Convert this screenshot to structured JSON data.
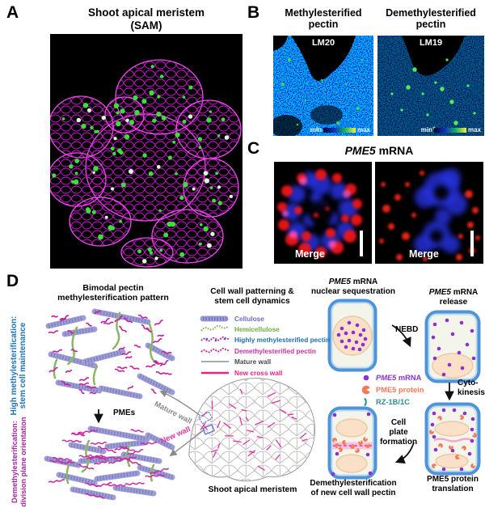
{
  "colors": {
    "magenta_accent": "#e8309f",
    "blue_label": "#1e74b8",
    "purple_label": "#a826a0",
    "mrna_purple": "#8f2fd0",
    "protein_salmon": "#f4795b",
    "rz_teal": "#2e8f8f",
    "cellulose_lavender": "#a0a0d8",
    "hemicellulose_green": "#8ab564"
  },
  "a": {
    "letter": "A",
    "title1": "Shoot apical meristem",
    "title2": "(SAM)"
  },
  "b": {
    "letter": "B",
    "col1_line1": "Methylesterified",
    "col1_line2": "pectin",
    "col2_line1": "Demethylesterified",
    "col2_line2": "pectin",
    "img1_label": "LM20",
    "img2_label": "LM19",
    "scale_min": "min",
    "scale_max": "max"
  },
  "c": {
    "letter": "C",
    "title_gene": "PME5",
    "title_rest": " mRNA",
    "merge1": "Merge",
    "merge2": "Merge"
  },
  "d": {
    "letter": "D",
    "bimodal_title1": "Bimodal pectin",
    "bimodal_title2": "methylesterification pattern",
    "high_line1": "High methylesterification:",
    "high_line2": "stem cell maintenance",
    "demeth_line1": "Demethylesterification:",
    "demeth_line2": "division plane orientation",
    "pmes": "PMEs",
    "legend_title1": "Cell wall patterning &",
    "legend_title2": "stem cell dynamics",
    "legend": [
      {
        "label": "Cellulose",
        "color": "#6b6bd2"
      },
      {
        "label": "Hemicellulose",
        "color": "#6fae3e"
      },
      {
        "label": "Highly methylesterified pectin",
        "color": "#1f6fb5"
      },
      {
        "label": "Demethylesterified pectin",
        "color": "#cc2f9f"
      },
      {
        "label": "Mature wall",
        "color": "#4a4a4a"
      },
      {
        "label": "New cross wall",
        "color": "#e8237f"
      }
    ],
    "mature_wall": "Mature wall",
    "new_wall": "New wall",
    "sam_label": "Shoot apical meristem",
    "cycle": {
      "step1_gene": "PME5",
      "step1_rest": " mRNA",
      "step1_line2": "nuclear sequestration",
      "nebd": "NEBD",
      "step2_gene": "PME5",
      "step2_rest": " mRNA",
      "step2_line2": "release",
      "cyto_line1": "Cyto-",
      "cyto_line2": "kinesis",
      "legend": [
        {
          "gene": "PME5",
          "rest": " mRNA",
          "color": "#8f2fd0"
        },
        {
          "label": "PME5 protein",
          "color": "#f4795b"
        },
        {
          "label": "RZ-1B/1C",
          "color": "#2e8f8f"
        }
      ],
      "plate_line1": "Cell",
      "plate_line2": "plate",
      "plate_line3": "formation",
      "step3_line1": "PME5 protein",
      "step3_line2": "translation",
      "step4_line1": "Demethylesterification",
      "step4_line2": "of new cell wall pectin"
    }
  }
}
